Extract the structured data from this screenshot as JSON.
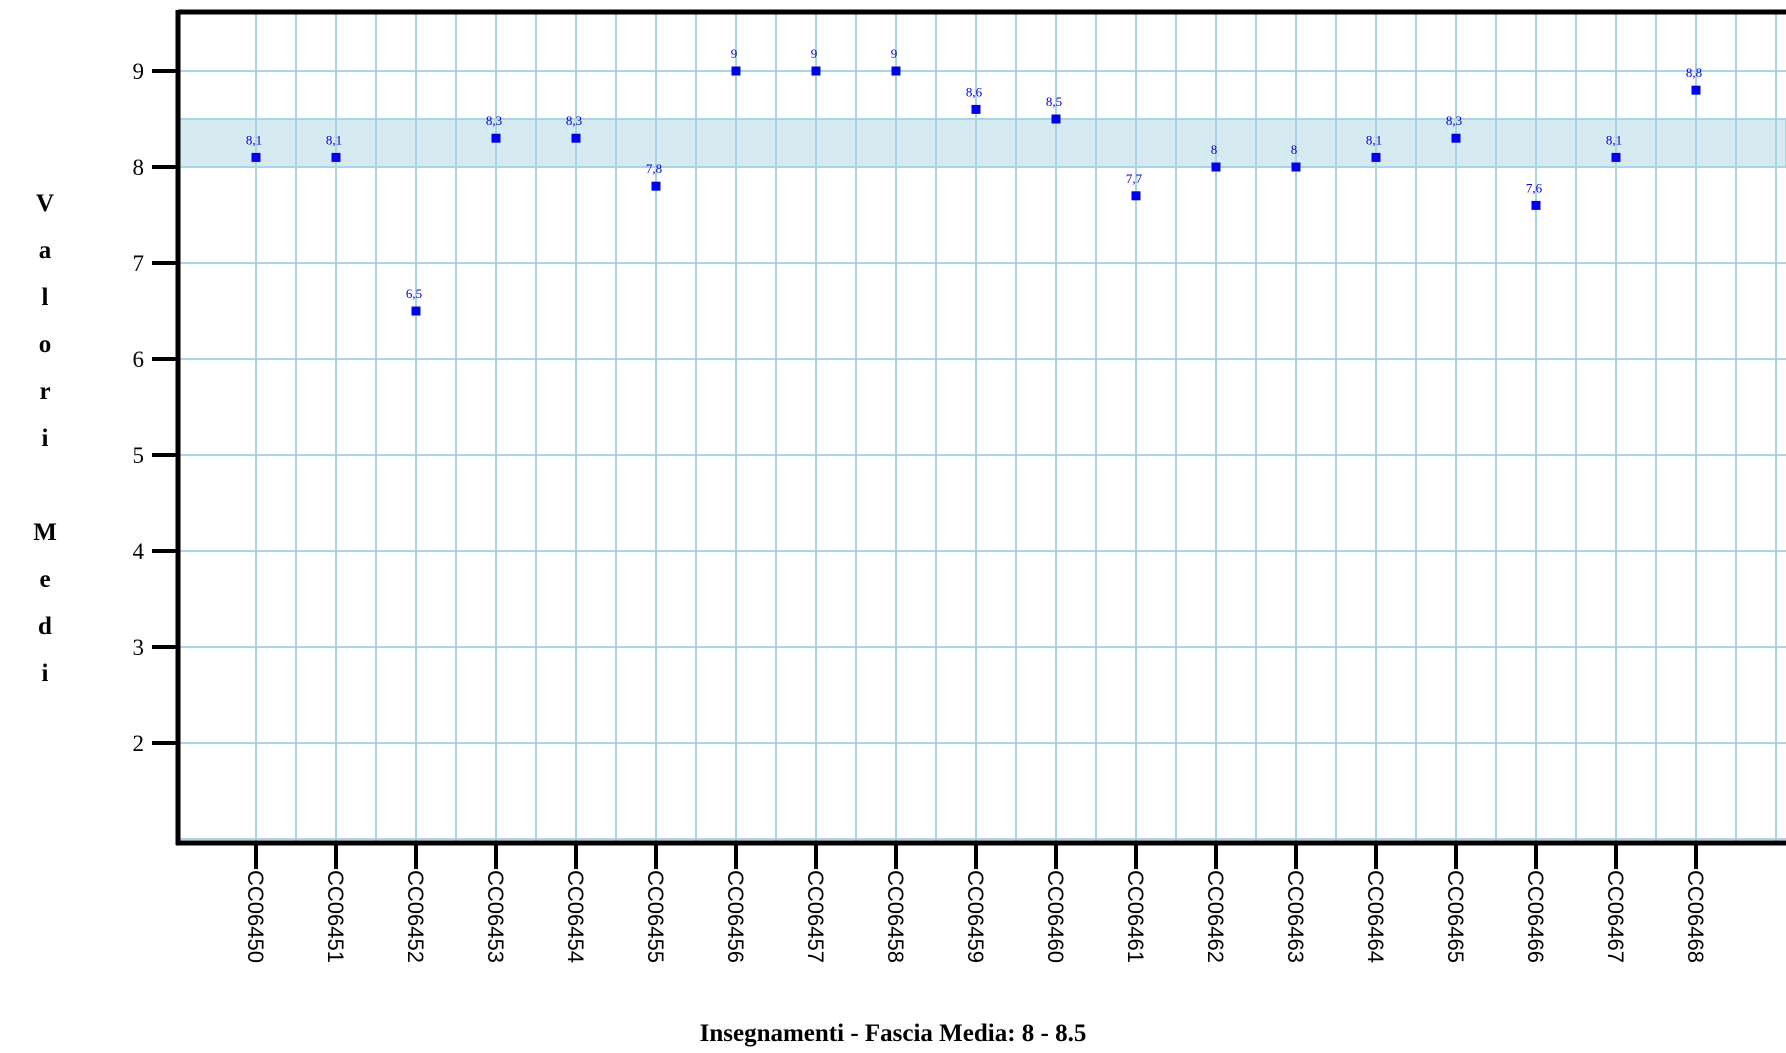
{
  "chart_data": {
    "type": "scatter",
    "title": "",
    "xlabel": "Insegnamenti - Fascia Media: 8 - 8.5",
    "ylabel": "Valori Medi",
    "categories": [
      "CC06450",
      "CC06451",
      "CC06452",
      "CC06453",
      "CC06454",
      "CC06455",
      "CC06456",
      "CC06457",
      "CC06458",
      "CC06459",
      "CC06460",
      "CC06461",
      "CC06462",
      "CC06463",
      "CC06464",
      "CC06465",
      "CC06466",
      "CC06467",
      "CC06468"
    ],
    "values": [
      8.1,
      8.1,
      6.5,
      8.3,
      8.3,
      7.8,
      9,
      9,
      9,
      8.6,
      8.5,
      7.7,
      8,
      8,
      8.1,
      8.3,
      7.6,
      8.1,
      8.8
    ],
    "value_labels": [
      "8,1",
      "8,1",
      "6,5",
      "8,3",
      "8,3",
      "7,8",
      "9",
      "9",
      "9",
      "8,6",
      "8,5",
      "7,7",
      "8",
      "8",
      "8,1",
      "8,3",
      "7,6",
      "8,1",
      "8,8"
    ],
    "yticks": [
      2,
      3,
      4,
      5,
      6,
      7,
      8,
      9
    ],
    "ylim": [
      0.9,
      9.6
    ],
    "band": [
      8,
      8.5
    ],
    "grid": true,
    "colors": {
      "marker": "#0000ee",
      "grid": "#a8d4e4",
      "band": "#d6eaf2",
      "axis": "#000000"
    }
  }
}
